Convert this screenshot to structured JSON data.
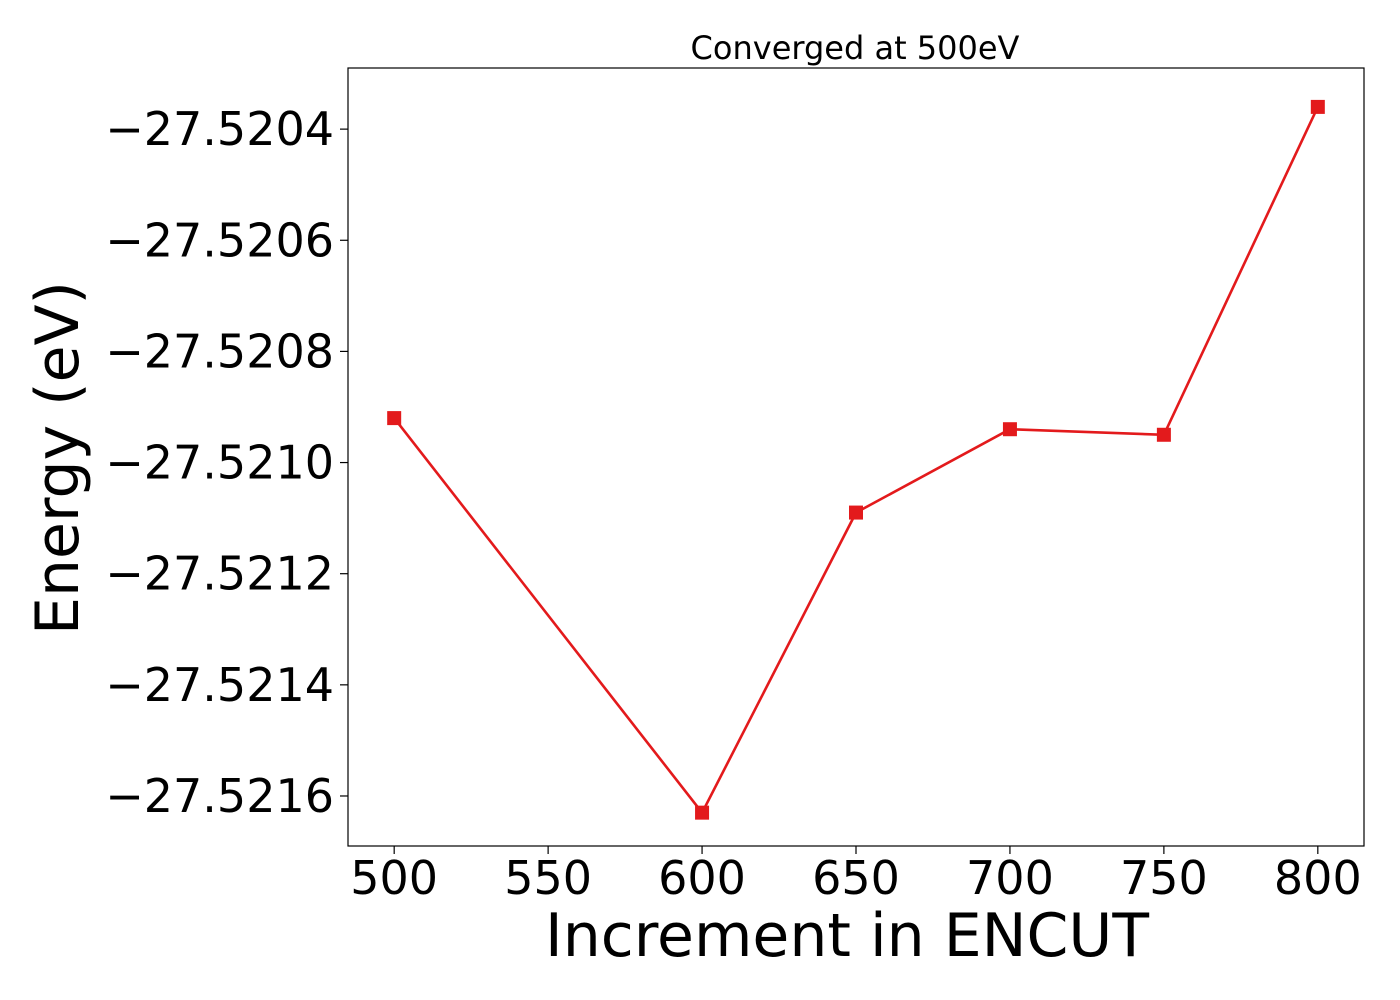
{
  "chart_data": {
    "type": "line",
    "title": "Converged at 500eV",
    "xlabel": "Increment in ENCUT",
    "ylabel": "Energy (eV)",
    "x": [
      500,
      600,
      650,
      700,
      750,
      800
    ],
    "series": [
      {
        "values": [
          -27.52092,
          -27.52163,
          -27.52109,
          -27.52094,
          -27.52095,
          -27.52036
        ],
        "color": "#e31a1c",
        "marker": "square"
      }
    ],
    "xlim": [
      485,
      815
    ],
    "ylim": [
      -27.52169,
      -27.52029
    ],
    "xticks": [
      500,
      550,
      600,
      650,
      700,
      750,
      800
    ],
    "xtick_labels": [
      "500",
      "550",
      "600",
      "650",
      "700",
      "750",
      "800"
    ],
    "yticks": [
      -27.5216,
      -27.5214,
      -27.5212,
      -27.521,
      -27.5208,
      -27.5206,
      -27.5204
    ],
    "ytick_labels": [
      "−27.5216",
      "−27.5214",
      "−27.5212",
      "−27.5210",
      "−27.5208",
      "−27.5206",
      "−27.5204"
    ],
    "grid": false,
    "legend": "none"
  }
}
